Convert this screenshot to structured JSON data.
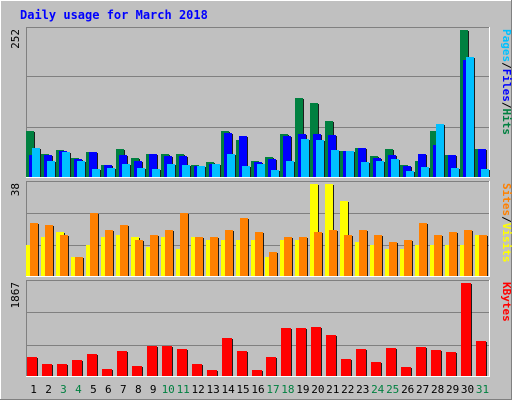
{
  "title": "Daily usage for March 2018",
  "colors": {
    "background": "#c0c0c0",
    "title": "#0000ff",
    "pages": "#00c0ff",
    "files": "#0000ff",
    "hits": "#008040",
    "sites": "#ff8000",
    "visits": "#ffff00",
    "kbytes": "#ff0000",
    "day_weekday": "#000000",
    "day_weekend": "#008040"
  },
  "chart_data": [
    {
      "type": "bar",
      "title": "Daily usage for March 2018",
      "ymax_label": "252",
      "ylim": [
        0,
        252
      ],
      "legend": [
        {
          "text": "Pages",
          "color": "#00c0ff"
        },
        {
          "text": "/",
          "color": "#000000"
        },
        {
          "text": "Files",
          "color": "#0000ff"
        },
        {
          "text": "/",
          "color": "#000000"
        },
        {
          "text": "Hits",
          "color": "#008040"
        }
      ],
      "categories": [
        "1",
        "2",
        "3",
        "4",
        "5",
        "6",
        "7",
        "8",
        "9",
        "10",
        "11",
        "12",
        "13",
        "14",
        "15",
        "16",
        "17",
        "18",
        "19",
        "20",
        "21",
        "22",
        "23",
        "24",
        "25",
        "26",
        "27",
        "28",
        "29",
        "30",
        "31"
      ],
      "series": [
        {
          "name": "Hits",
          "values": [
            78,
            40,
            46,
            32,
            42,
            20,
            48,
            33,
            40,
            40,
            40,
            20,
            25,
            78,
            64,
            27,
            34,
            73,
            136,
            127,
            96,
            45,
            50,
            36,
            48,
            20,
            28,
            78,
            38,
            252,
            48
          ]
        },
        {
          "name": "Files",
          "values": [
            38,
            38,
            45,
            30,
            42,
            20,
            38,
            27,
            39,
            36,
            36,
            19,
            22,
            75,
            70,
            25,
            30,
            70,
            73,
            73,
            72,
            45,
            50,
            33,
            38,
            18,
            40,
            55,
            37,
            200,
            48
          ]
        },
        {
          "name": "Pages",
          "values": [
            50,
            27,
            42,
            28,
            13,
            15,
            22,
            16,
            14,
            22,
            20,
            19,
            22,
            40,
            18,
            22,
            12,
            28,
            65,
            63,
            47,
            44,
            25,
            27,
            30,
            11,
            17,
            90,
            15,
            205,
            14
          ]
        }
      ]
    },
    {
      "type": "bar",
      "ymax_label": "38",
      "ylim": [
        0,
        38
      ],
      "legend": [
        {
          "text": "Sites",
          "color": "#ff8000"
        },
        {
          "text": "/",
          "color": "#000000"
        },
        {
          "text": "Visits",
          "color": "#ffff00"
        }
      ],
      "categories": [
        "1",
        "2",
        "3",
        "4",
        "5",
        "6",
        "7",
        "8",
        "9",
        "10",
        "11",
        "12",
        "13",
        "14",
        "15",
        "16",
        "17",
        "18",
        "19",
        "20",
        "21",
        "22",
        "23",
        "24",
        "25",
        "26",
        "27",
        "28",
        "29",
        "30",
        "31"
      ],
      "series": [
        {
          "name": "Visits",
          "values": [
            13,
            16,
            18,
            8,
            13,
            16,
            17,
            16,
            12,
            16,
            11,
            16,
            15,
            15,
            15,
            15,
            8,
            15,
            15,
            38,
            38,
            31,
            14,
            13,
            11,
            11,
            13,
            13,
            13,
            13,
            17
          ]
        },
        {
          "name": "Sites",
          "values": [
            22,
            21,
            17,
            8,
            26,
            19,
            21,
            15,
            17,
            19,
            26,
            16,
            16,
            19,
            24,
            18,
            10,
            16,
            16,
            18,
            19,
            17,
            19,
            17,
            14,
            15,
            22,
            17,
            18,
            19,
            17
          ]
        }
      ]
    },
    {
      "type": "bar",
      "ymax_label": "1867",
      "ylim": [
        0,
        1867
      ],
      "legend": [
        {
          "text": "KBytes",
          "color": "#ff0000"
        }
      ],
      "categories": [
        "1",
        "2",
        "3",
        "4",
        "5",
        "6",
        "7",
        "8",
        "9",
        "10",
        "11",
        "12",
        "13",
        "14",
        "15",
        "16",
        "17",
        "18",
        "19",
        "20",
        "21",
        "22",
        "23",
        "24",
        "25",
        "26",
        "27",
        "28",
        "29",
        "30",
        "31"
      ],
      "series": [
        {
          "name": "KBytes",
          "values": [
            378,
            236,
            236,
            317,
            446,
            142,
            498,
            192,
            612,
            612,
            545,
            250,
            116,
            769,
            498,
            129,
            378,
            954,
            954,
            979,
            820,
            342,
            550,
            285,
            561,
            182,
            575,
            527,
            472,
            1867,
            699
          ]
        }
      ]
    }
  ],
  "weekend_days": [
    "3",
    "4",
    "10",
    "11",
    "17",
    "18",
    "24",
    "25",
    "31"
  ]
}
